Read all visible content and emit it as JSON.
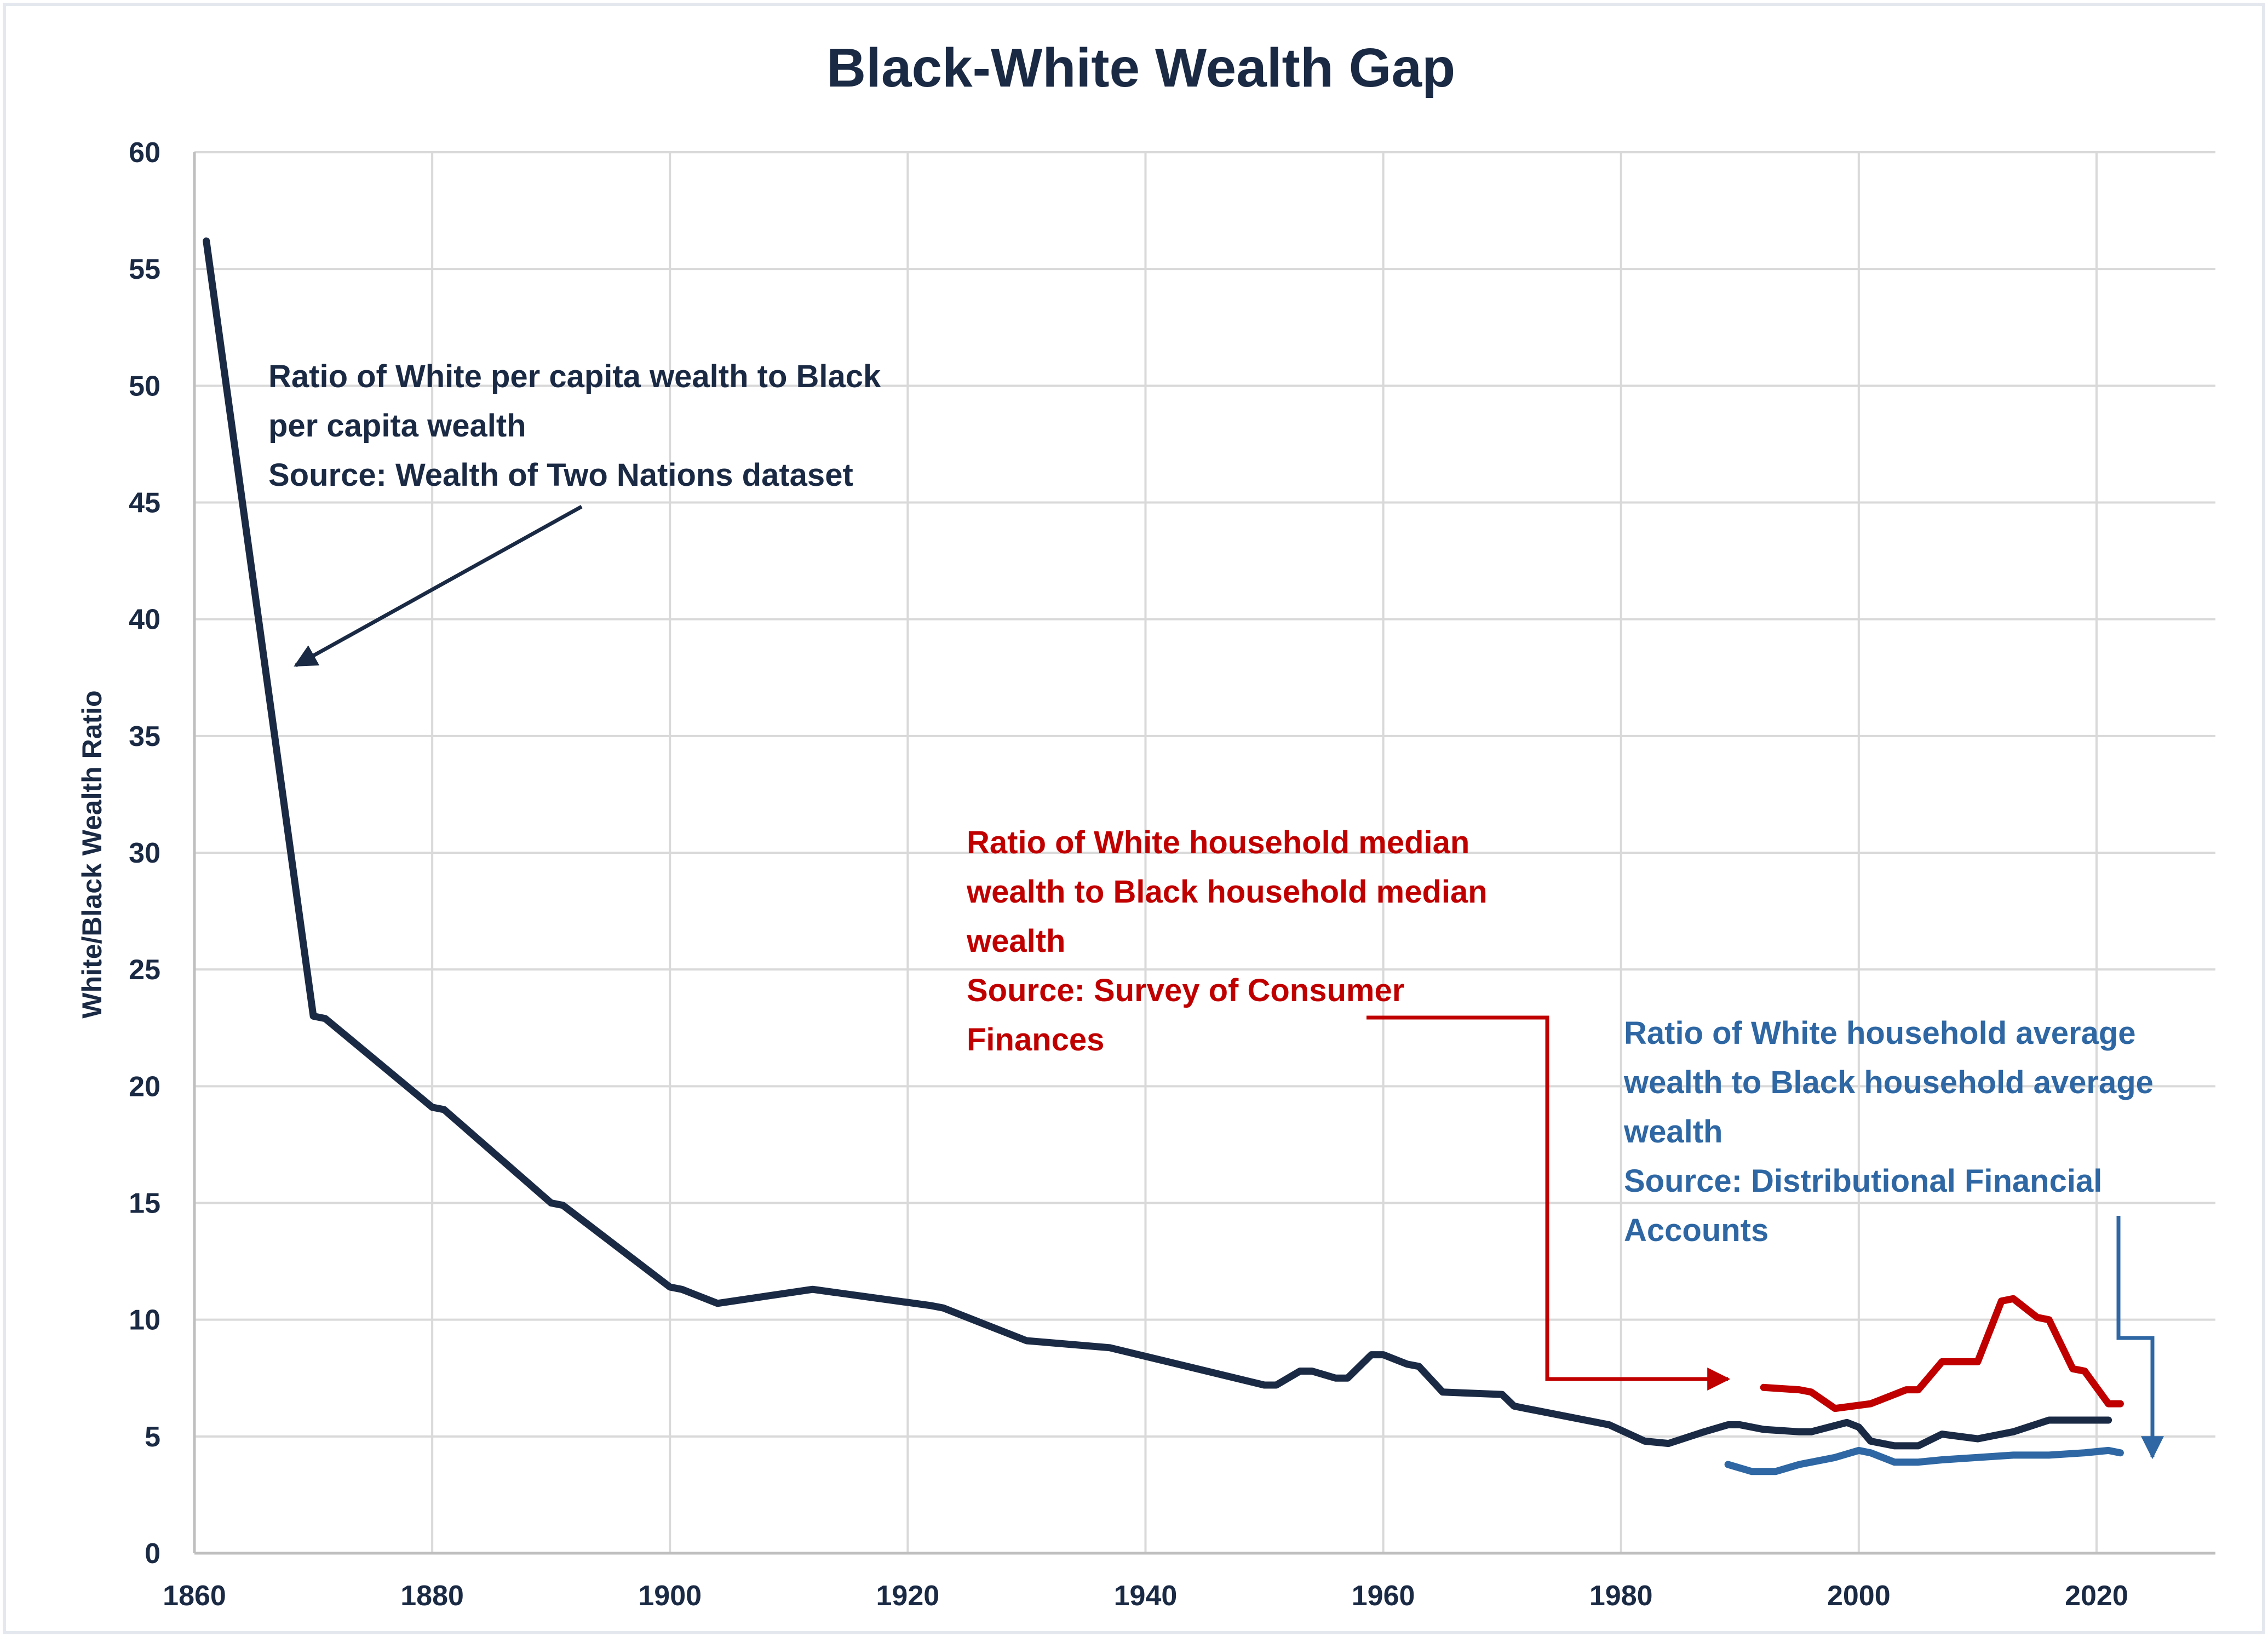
{
  "chart_data": {
    "type": "line",
    "title": "Black-White Wealth Gap",
    "xlabel": "",
    "ylabel": "White/Black Wealth Ratio",
    "xlim": [
      1860,
      2030
    ],
    "ylim": [
      0,
      60
    ],
    "x_ticks": [
      "1860",
      "1880",
      "1900",
      "1920",
      "1940",
      "1960",
      "1980",
      "2000",
      "2020"
    ],
    "y_ticks": [
      "0",
      "5",
      "10",
      "15",
      "20",
      "25",
      "30",
      "35",
      "40",
      "45",
      "50",
      "55",
      "60"
    ],
    "grid": true,
    "series": [
      {
        "color": "#1b2a44",
        "points": [
          [
            1861,
            56.2
          ],
          [
            1870,
            23.0
          ],
          [
            1871,
            22.9
          ],
          [
            1880,
            19.1
          ],
          [
            1881,
            19.0
          ],
          [
            1890,
            15.0
          ],
          [
            1891,
            14.9
          ],
          [
            1900,
            11.4
          ],
          [
            1901,
            11.3
          ],
          [
            1904,
            10.7
          ],
          [
            1912,
            11.3
          ],
          [
            1922,
            10.6
          ],
          [
            1923,
            10.5
          ],
          [
            1930,
            9.1
          ],
          [
            1937,
            8.8
          ],
          [
            1950,
            7.2
          ],
          [
            1951,
            7.2
          ],
          [
            1953,
            7.8
          ],
          [
            1954,
            7.8
          ],
          [
            1956,
            7.5
          ],
          [
            1957,
            7.5
          ],
          [
            1959,
            8.5
          ],
          [
            1960,
            8.5
          ],
          [
            1962,
            8.1
          ],
          [
            1963,
            8.0
          ],
          [
            1965,
            6.9
          ],
          [
            1970,
            6.8
          ],
          [
            1971,
            6.3
          ],
          [
            1972,
            6.2
          ],
          [
            1978,
            5.6
          ],
          [
            1979,
            5.5
          ],
          [
            1982,
            4.8
          ],
          [
            1984,
            4.7
          ],
          [
            1987,
            5.2
          ],
          [
            1989,
            5.5
          ],
          [
            1990,
            5.5
          ],
          [
            1992,
            5.3
          ],
          [
            1995,
            5.2
          ],
          [
            1996,
            5.2
          ],
          [
            1999,
            5.6
          ],
          [
            2000,
            5.4
          ],
          [
            2001,
            4.8
          ],
          [
            2003,
            4.6
          ],
          [
            2005,
            4.6
          ],
          [
            2007,
            5.1
          ],
          [
            2010,
            4.9
          ],
          [
            2013,
            5.2
          ],
          [
            2016,
            5.7
          ],
          [
            2021,
            5.7
          ]
        ]
      },
      {
        "color": "#c00000",
        "points": [
          [
            1992,
            7.1
          ],
          [
            1995,
            7.0
          ],
          [
            1996,
            6.9
          ],
          [
            1998,
            6.2
          ],
          [
            2001,
            6.4
          ],
          [
            2004,
            7.0
          ],
          [
            2005,
            7.0
          ],
          [
            2007,
            8.2
          ],
          [
            2010,
            8.2
          ],
          [
            2012,
            10.8
          ],
          [
            2013,
            10.9
          ],
          [
            2015,
            10.1
          ],
          [
            2016,
            10.0
          ],
          [
            2018,
            7.9
          ],
          [
            2019,
            7.8
          ],
          [
            2021,
            6.4
          ],
          [
            2022,
            6.4
          ]
        ]
      },
      {
        "color": "#2e67a3",
        "points": [
          [
            1989,
            3.8
          ],
          [
            1991,
            3.5
          ],
          [
            1993,
            3.5
          ],
          [
            1995,
            3.8
          ],
          [
            1998,
            4.1
          ],
          [
            2000,
            4.4
          ],
          [
            2001,
            4.3
          ],
          [
            2003,
            3.9
          ],
          [
            2005,
            3.9
          ],
          [
            2007,
            4.0
          ],
          [
            2010,
            4.1
          ],
          [
            2013,
            4.2
          ],
          [
            2016,
            4.2
          ],
          [
            2019,
            4.3
          ],
          [
            2021,
            4.4
          ],
          [
            2022,
            4.3
          ]
        ]
      }
    ],
    "annotations": {
      "navy": [
        "Ratio of White per capita wealth to Black",
        "per capita wealth",
        "Source: Wealth of Two Nations dataset"
      ],
      "red": [
        "Ratio of White household median",
        "wealth to Black household median",
        "wealth",
        "Source: Survey of Consumer",
        "Finances"
      ],
      "blue": [
        "Ratio of White household average",
        "wealth to Black household average",
        "wealth",
        "Source: Distributional Financial",
        "Accounts"
      ]
    }
  }
}
